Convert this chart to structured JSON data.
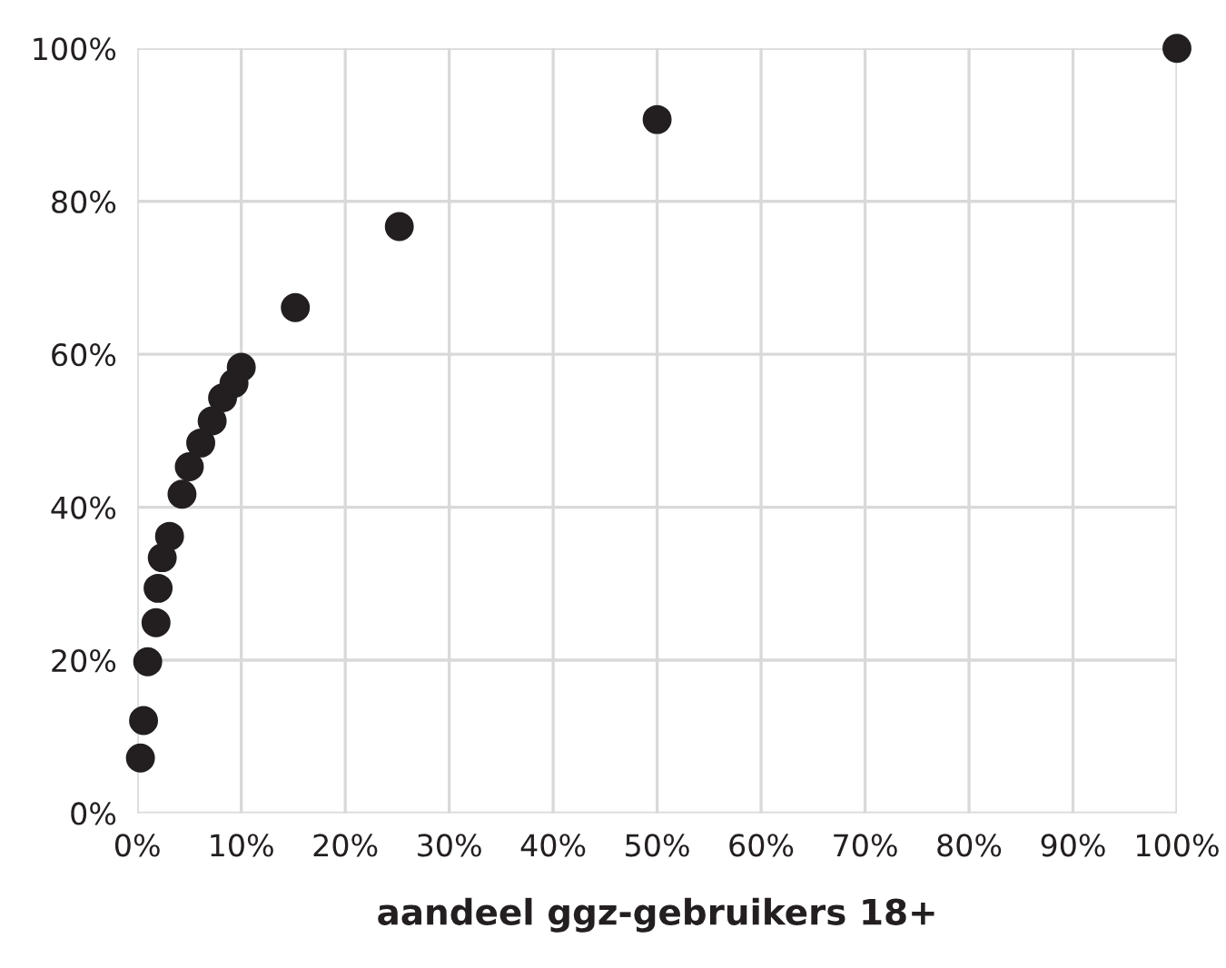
{
  "chart_data": {
    "type": "scatter",
    "xlabel": "aandeel ggz-gebruikers 18+",
    "marker": "circle",
    "grid": true,
    "xlim": [
      0,
      100
    ],
    "ylim": [
      0,
      100
    ],
    "xticks": [
      {
        "value": 0,
        "label": "0%"
      },
      {
        "value": 10,
        "label": "10%"
      },
      {
        "value": 20,
        "label": "20%"
      },
      {
        "value": 30,
        "label": "30%"
      },
      {
        "value": 40,
        "label": "40%"
      },
      {
        "value": 50,
        "label": "50%"
      },
      {
        "value": 60,
        "label": "60%"
      },
      {
        "value": 70,
        "label": "70%"
      },
      {
        "value": 80,
        "label": "80%"
      },
      {
        "value": 90,
        "label": "90%"
      },
      {
        "value": 100,
        "label": "100%"
      }
    ],
    "yticks": [
      {
        "value": 0,
        "label": "0%"
      },
      {
        "value": 20,
        "label": "20%"
      },
      {
        "value": 40,
        "label": "40%"
      },
      {
        "value": 60,
        "label": "60%"
      },
      {
        "value": 80,
        "label": "80%"
      },
      {
        "value": 100,
        "label": "100%"
      }
    ],
    "series": [
      {
        "color": "#231f20",
        "x": [
          0.3,
          0.6,
          1.0,
          1.8,
          2.0,
          2.4,
          3.1,
          4.3,
          5.0,
          6.1,
          7.2,
          8.2,
          9.3,
          10.0,
          15.2,
          25.2,
          50,
          100
        ],
        "values": [
          7.2,
          12.1,
          19.8,
          24.9,
          29.4,
          33.4,
          36.2,
          41.7,
          45.3,
          48.4,
          51.3,
          54.3,
          56.2,
          58.3,
          66.1,
          76.7,
          90.7,
          100
        ]
      }
    ]
  }
}
